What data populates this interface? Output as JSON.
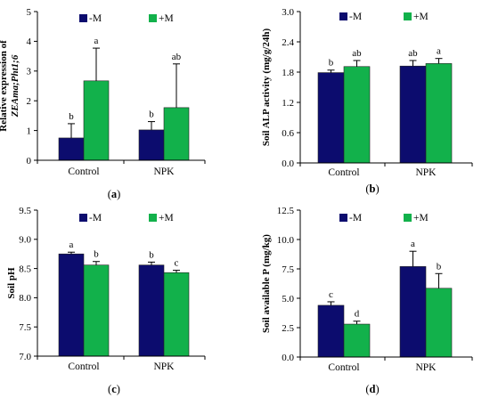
{
  "colors": {
    "minus_m": "#0c0c6e",
    "plus_m": "#12b14b"
  },
  "chart_data": [
    {
      "panel": "a",
      "type": "bar",
      "categories": [
        "Control",
        "NPK"
      ],
      "ylabel_lines": [
        "Relative expression of",
        "ZEAma;Pht1;6"
      ],
      "ylim": [
        0,
        5
      ],
      "yticks": [
        0,
        1,
        2,
        3,
        4,
        5
      ],
      "ytick_labels": [
        "0",
        "1",
        "2",
        "3",
        "4",
        "5"
      ],
      "legend": "top",
      "series": [
        {
          "name": "-M",
          "values": [
            0.75,
            1.02
          ],
          "errors": [
            0.48,
            0.28
          ],
          "letters": [
            "b",
            "b"
          ]
        },
        {
          "name": "+M",
          "values": [
            2.67,
            1.77
          ],
          "errors": [
            1.1,
            1.47
          ],
          "letters": [
            "a",
            "ab"
          ]
        }
      ]
    },
    {
      "panel": "b",
      "type": "bar",
      "categories": [
        "Control",
        "NPK"
      ],
      "ylabel_lines": [
        "Soil ALP activity (mg/g/24h)"
      ],
      "ylim": [
        0,
        3
      ],
      "yticks": [
        0,
        0.6,
        1.2,
        1.8,
        2.4,
        3.0
      ],
      "ytick_labels": [
        "0.0",
        "0.6",
        "1.2",
        "1.8",
        "2.4",
        "3.0"
      ],
      "legend": "top",
      "series": [
        {
          "name": "-M",
          "values": [
            1.79,
            1.92
          ],
          "errors": [
            0.05,
            0.11
          ],
          "letters": [
            "b",
            "ab"
          ]
        },
        {
          "name": "+M",
          "values": [
            1.91,
            1.97
          ],
          "errors": [
            0.12,
            0.1
          ],
          "letters": [
            "ab",
            "a"
          ]
        }
      ]
    },
    {
      "panel": "c",
      "type": "bar",
      "categories": [
        "Control",
        "NPK"
      ],
      "ylabel_lines": [
        "Soil pH"
      ],
      "ylim": [
        7,
        9.5
      ],
      "yticks": [
        7.0,
        7.5,
        8.0,
        8.5,
        9.0,
        9.5
      ],
      "ytick_labels": [
        "7.0",
        "7.5",
        "8.0",
        "8.5",
        "9.0",
        "9.5"
      ],
      "legend": "top",
      "series": [
        {
          "name": "-M",
          "values": [
            8.75,
            8.56
          ],
          "errors": [
            0.03,
            0.05
          ],
          "letters": [
            "a",
            "b"
          ]
        },
        {
          "name": "+M",
          "values": [
            8.56,
            8.43
          ],
          "errors": [
            0.06,
            0.04
          ],
          "letters": [
            "b",
            "c"
          ]
        }
      ]
    },
    {
      "panel": "d",
      "type": "bar",
      "categories": [
        "Control",
        "NPK"
      ],
      "ylabel_lines": [
        "Soil available P (mg/kg)"
      ],
      "ylim": [
        0,
        12.5
      ],
      "yticks": [
        0,
        2.5,
        5,
        7.5,
        10,
        12.5
      ],
      "ytick_labels": [
        "0.0",
        "2.5",
        "5.0",
        "7.5",
        "10.0",
        "12.5"
      ],
      "legend": "top",
      "series": [
        {
          "name": "-M",
          "values": [
            4.4,
            7.7
          ],
          "errors": [
            0.3,
            1.3
          ],
          "letters": [
            "c",
            "a"
          ]
        },
        {
          "name": "+M",
          "values": [
            2.8,
            5.85
          ],
          "errors": [
            0.25,
            1.25
          ],
          "letters": [
            "d",
            "b"
          ]
        }
      ]
    }
  ]
}
